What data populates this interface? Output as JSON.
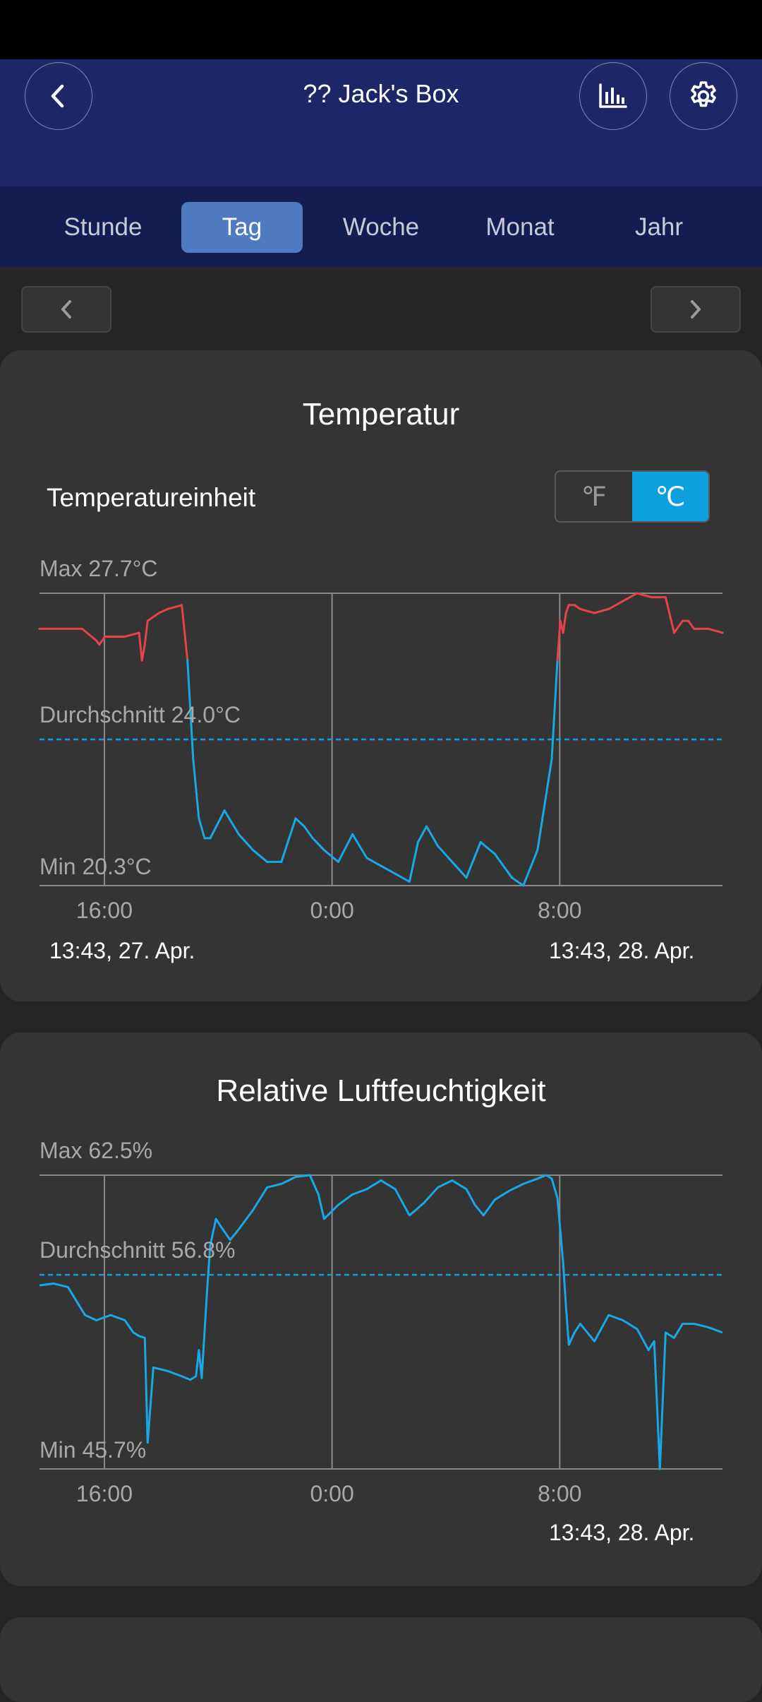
{
  "header": {
    "title": "?? Jack's Box",
    "icons": {
      "back": "chevron-left-icon",
      "chart": "bar-chart-icon",
      "settings": "gear-icon"
    }
  },
  "tabs": [
    {
      "label": "Stunde",
      "active": false
    },
    {
      "label": "Tag",
      "active": true
    },
    {
      "label": "Woche",
      "active": false
    },
    {
      "label": "Monat",
      "active": false
    },
    {
      "label": "Jahr",
      "active": false
    }
  ],
  "temperature": {
    "title": "Temperatur",
    "unit_label": "Temperatureinheit",
    "unit_f": "℉",
    "unit_c": "℃",
    "selected_unit": "C",
    "start_label": "13:43,  27. Apr.",
    "end_label": "13:43,  28. Apr."
  },
  "humidity": {
    "title": "Relative Luftfeuchtigkeit",
    "end_label": "13:43,  28. Apr."
  },
  "colors": {
    "accent": "#0d9fe0",
    "above_avg": "#e5434b",
    "line": "#19a8e6",
    "header": "#1b2767",
    "tabbar": "#141d52",
    "tab_active": "#4d7ac0"
  },
  "chart_data": [
    {
      "type": "line",
      "title": "Temperatur",
      "x_ticks": [
        "16:00",
        "0:00",
        "8:00"
      ],
      "max_label": "Max 27.7°C",
      "avg_label": "Durchschnitt 24.0°C",
      "min_label": "Min 20.3°C",
      "ylim": [
        20.3,
        27.7
      ],
      "average": 24.0,
      "x_hours": [
        0,
        0.5,
        1,
        1.5,
        2,
        2.1,
        2.2,
        2.3,
        2.4,
        2.5,
        2.6,
        3,
        3.5,
        3.6,
        3.7,
        3.8,
        4,
        4.2,
        4.5,
        5,
        5.2,
        5.4,
        5.6,
        5.8,
        6,
        6.5,
        7,
        7.5,
        8,
        8.5,
        9,
        9.3,
        9.6,
        10,
        10.5,
        11,
        11.5,
        12,
        12.5,
        13,
        13.3,
        13.6,
        14,
        14.5,
        15,
        15.5,
        16,
        16.3,
        16.6,
        17,
        17.5,
        18,
        18.2,
        18.3,
        18.4,
        18.5,
        18.6,
        18.8,
        19,
        19.5,
        20,
        20.5,
        21,
        21.5,
        22,
        22.3,
        22.6,
        22.8,
        23,
        23.5,
        24
      ],
      "values": [
        26.8,
        26.8,
        26.8,
        26.8,
        26.5,
        26.4,
        26.5,
        26.6,
        26.6,
        26.6,
        26.6,
        26.6,
        26.7,
        26.0,
        26.4,
        27.0,
        27.1,
        27.2,
        27.3,
        27.4,
        26.0,
        23.5,
        22.0,
        21.5,
        21.5,
        22.2,
        21.6,
        21.2,
        20.9,
        20.9,
        22.0,
        21.8,
        21.5,
        21.2,
        20.9,
        21.6,
        21.0,
        20.8,
        20.6,
        20.4,
        21.4,
        21.8,
        21.3,
        20.9,
        20.5,
        21.4,
        21.1,
        20.8,
        20.5,
        20.3,
        21.2,
        23.5,
        26.0,
        27.0,
        26.7,
        27.2,
        27.4,
        27.4,
        27.3,
        27.2,
        27.3,
        27.5,
        27.7,
        27.6,
        27.6,
        26.7,
        27.0,
        27.0,
        26.8,
        26.8,
        26.7
      ]
    },
    {
      "type": "line",
      "title": "Relative Luftfeuchtigkeit",
      "x_ticks": [
        "16:00",
        "0:00",
        "8:00"
      ],
      "max_label": "Max 62.5%",
      "avg_label": "Durchschnitt 56.8%",
      "min_label": "Min 45.7%",
      "ylim": [
        45.7,
        62.5
      ],
      "average": 56.8,
      "x_hours": [
        0,
        0.5,
        1,
        1.3,
        1.6,
        2,
        2.5,
        3,
        3.3,
        3.5,
        3.7,
        3.8,
        4,
        4.5,
        5,
        5.3,
        5.5,
        5.6,
        5.7,
        5.9,
        6,
        6.2,
        6.4,
        6.7,
        7,
        7.5,
        8,
        8.5,
        9,
        9.5,
        9.8,
        10,
        10.5,
        11,
        11.5,
        12,
        12.5,
        12.8,
        13,
        13.5,
        14,
        14.5,
        15,
        15.3,
        15.6,
        16,
        16.5,
        17,
        17.5,
        17.8,
        18,
        18.2,
        18.4,
        18.5,
        18.6,
        18.8,
        19,
        19.5,
        20,
        20.5,
        21,
        21.4,
        21.6,
        21.8,
        22,
        22.3,
        22.6,
        23,
        23.5,
        24
      ],
      "values": [
        56.2,
        56.3,
        56.1,
        55.3,
        54.5,
        54.2,
        54.5,
        54.2,
        53.5,
        53.3,
        53.2,
        47.2,
        51.5,
        51.3,
        51.0,
        50.8,
        51.0,
        52.5,
        50.9,
        56.2,
        58.5,
        60.0,
        59.5,
        58.8,
        59.4,
        60.5,
        61.8,
        62.0,
        62.4,
        62.5,
        61.4,
        60.0,
        60.8,
        61.4,
        61.7,
        62.2,
        61.7,
        60.8,
        60.2,
        60.9,
        61.8,
        62.2,
        61.7,
        60.8,
        60.2,
        61.1,
        61.6,
        62.0,
        62.3,
        62.5,
        62.3,
        61.2,
        57.5,
        55.0,
        52.8,
        53.5,
        54.0,
        53.0,
        54.5,
        54.2,
        53.7,
        52.5,
        53.0,
        45.7,
        53.5,
        53.2,
        54.0,
        54.0,
        53.8,
        53.5
      ]
    }
  ]
}
